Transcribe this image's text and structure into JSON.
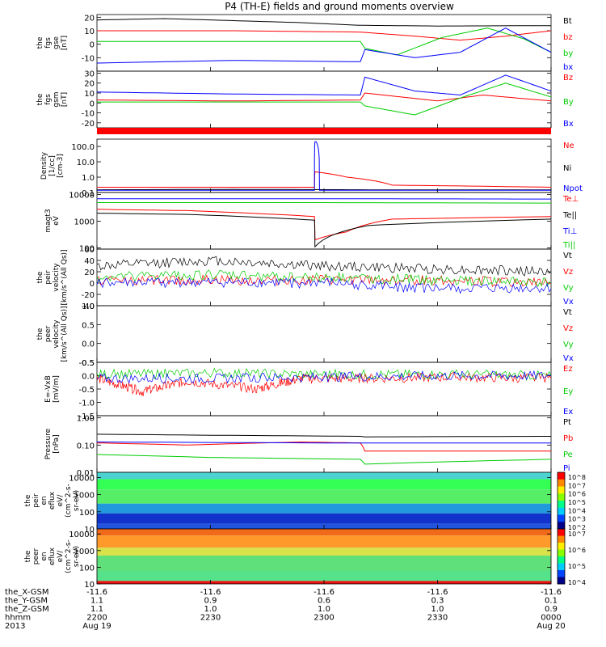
{
  "title": "P4 (TH-E) fields and ground moments overview",
  "colors": {
    "black": "#000000",
    "red": "#ff0000",
    "green": "#00cc00",
    "blue": "#0000ff",
    "bar_red": "#ff0000"
  },
  "time_axis": {
    "major_positions_hhmm": [
      "2200",
      "2230",
      "2300",
      "2330",
      "0000"
    ],
    "date_start": "Aug 19",
    "date_end": "Aug 20",
    "year": "2013"
  },
  "footer": {
    "rows": [
      {
        "label": "the_X-GSM",
        "values": [
          "-11.6",
          "-11.6",
          "-11.6",
          "-11.6",
          "-11.6"
        ]
      },
      {
        "label": "the_Y-GSM",
        "values": [
          "1.1",
          "0.9",
          "0.6",
          "0.3",
          "0.1"
        ]
      },
      {
        "label": "the_Z-GSM",
        "values": [
          "1.1",
          "1.0",
          "1.0",
          "1.0",
          "0.9"
        ]
      },
      {
        "label": "hhmm",
        "values": [
          "2200",
          "2230",
          "2300",
          "2330",
          "0000"
        ]
      },
      {
        "label": "2013",
        "values": [
          "Aug 19",
          "",
          "",
          "",
          "Aug 20"
        ]
      }
    ]
  },
  "chart_data": [
    {
      "type": "line",
      "ylabel": "the fgs gse [nT]",
      "ylabel_lines": [
        "the",
        "fgs",
        "gse",
        "[nT]"
      ],
      "yticks": [
        "20",
        "10",
        "0",
        "-10"
      ],
      "ylim": [
        -20,
        22
      ],
      "series": [
        {
          "name": "Bt",
          "color": "#000000",
          "x": [
            0,
            15,
            30,
            45,
            58,
            59,
            75,
            100
          ],
          "y": [
            18,
            19,
            17.5,
            16,
            14,
            14,
            13.5,
            13.8
          ]
        },
        {
          "name": "bz",
          "color": "#ff0000",
          "x": [
            0,
            30,
            58,
            70,
            80,
            90,
            100
          ],
          "y": [
            10,
            10,
            9,
            6,
            3,
            6,
            10
          ]
        },
        {
          "name": "by",
          "color": "#00cc00",
          "x": [
            0,
            30,
            58,
            59,
            66,
            76,
            86,
            94,
            100
          ],
          "y": [
            2,
            2,
            2,
            -3,
            -8,
            5,
            12,
            4,
            -6
          ]
        },
        {
          "name": "bx",
          "color": "#0000ff",
          "x": [
            0,
            30,
            58,
            59,
            70,
            80,
            90,
            100
          ],
          "y": [
            -14,
            -12,
            -13,
            -4,
            -10,
            -6,
            12,
            -6
          ]
        }
      ]
    },
    {
      "type": "line",
      "ylabel": "the fgs gsm [nT]",
      "ylabel_lines": [
        "the",
        "fgs",
        "gsm",
        "[nT]"
      ],
      "yticks": [
        "30",
        "20",
        "10",
        "0",
        "-10",
        "-20"
      ],
      "ylim": [
        -25,
        32
      ],
      "series": [
        {
          "name": "Bz",
          "color": "#ff0000",
          "x": [
            0,
            30,
            58,
            59,
            75,
            85,
            100
          ],
          "y": [
            3,
            2,
            3,
            10,
            2,
            8,
            2
          ]
        },
        {
          "name": "By",
          "color": "#00cc00",
          "x": [
            0,
            30,
            58,
            59,
            70,
            80,
            90,
            100
          ],
          "y": [
            1,
            1,
            1,
            -3,
            -12,
            5,
            20,
            6
          ]
        },
        {
          "name": "Bx",
          "color": "#0000ff",
          "x": [
            0,
            30,
            58,
            59,
            70,
            80,
            90,
            100
          ],
          "y": [
            11,
            9,
            8,
            26,
            12,
            8,
            28,
            12
          ]
        }
      ]
    },
    {
      "type": "bar",
      "ylabel": "",
      "categories": [
        "2200",
        "0000"
      ],
      "values": [
        1,
        1
      ],
      "note": "full-width red status bar"
    },
    {
      "type": "line",
      "yscale": "log",
      "ylabel": "Density [1/cc] [cm-3]",
      "ylabel_lines": [
        "Density",
        "[1/cc]",
        "[cm-3]"
      ],
      "yticks": [
        "100.0",
        "10.0",
        "1.0",
        "0.1"
      ],
      "ylim": [
        0.1,
        300
      ],
      "series": [
        {
          "name": "Ne",
          "color": "#ff0000",
          "x": [
            0,
            30,
            47.9,
            48,
            55,
            65,
            100
          ],
          "y": [
            0.22,
            0.22,
            0.22,
            2.2,
            1.0,
            0.3,
            0.22
          ]
        },
        {
          "name": "Ni",
          "color": "#000000",
          "x": [
            0,
            30,
            60,
            100
          ],
          "y": [
            0.15,
            0.16,
            0.15,
            0.15
          ]
        },
        {
          "name": "Npot",
          "color": "#0000ff",
          "x": [
            0,
            47.9,
            48,
            48.3,
            49,
            100
          ],
          "y": [
            0.14,
            0.14,
            200,
            200,
            0.14,
            0.14
          ]
        }
      ]
    },
    {
      "type": "line",
      "yscale": "log",
      "ylabel": "magt3 eV",
      "ylabel_lines": [
        "magt3",
        "eV"
      ],
      "yticks": [
        "10000",
        "1000",
        "100"
      ],
      "ylim": [
        90,
        12000
      ],
      "series": [
        {
          "name": "Te⊥",
          "color": "#ff0000",
          "x": [
            0,
            20,
            47.9,
            48,
            55,
            65,
            100
          ],
          "y": [
            2800,
            2500,
            1500,
            200,
            400,
            1200,
            1500
          ]
        },
        {
          "name": "Te||",
          "color": "#000000",
          "x": [
            0,
            20,
            47.9,
            48,
            60,
            100
          ],
          "y": [
            2000,
            1800,
            1100,
            110,
            700,
            1200
          ]
        },
        {
          "name": "Ti⊥",
          "color": "#0000ff",
          "x": [
            0,
            50,
            100
          ],
          "y": [
            7000,
            7000,
            6800
          ]
        },
        {
          "name": "Ti||",
          "color": "#00cc00",
          "x": [
            0,
            50,
            100
          ],
          "y": [
            5000,
            5000,
            4800
          ]
        }
      ]
    },
    {
      "type": "line",
      "ylabel": "the peir velocity [km/s^(All Qs)]",
      "ylabel_lines": [
        "the",
        "peir",
        "velocity",
        "[km/s^(All Qs)]"
      ],
      "yticks": [
        "60",
        "40",
        "20",
        "0",
        "-20",
        "-40"
      ],
      "ylim": [
        -40,
        60
      ],
      "series": [
        {
          "name": "Vt",
          "color": "#000000",
          "x": [
            0,
            25,
            50,
            75,
            100
          ],
          "y": [
            30,
            40,
            30,
            25,
            20
          ]
        },
        {
          "name": "Vz",
          "color": "#ff0000",
          "x": [
            0,
            25,
            50,
            75,
            100
          ],
          "y": [
            5,
            5,
            5,
            5,
            0
          ]
        },
        {
          "name": "Vy",
          "color": "#00cc00",
          "x": [
            0,
            25,
            50,
            75,
            100
          ],
          "y": [
            10,
            15,
            10,
            5,
            0
          ]
        },
        {
          "name": "Vx",
          "color": "#0000ff",
          "x": [
            0,
            25,
            50,
            75,
            100
          ],
          "y": [
            0,
            0,
            0,
            -10,
            -10
          ]
        }
      ]
    },
    {
      "type": "line",
      "ylabel": "the peer velocity [km/s^(All Qs)]",
      "ylabel_lines": [
        "the",
        "peer",
        "velocity",
        "[km/s^(All Qs)]"
      ],
      "yticks": [
        "1.0",
        "0.5",
        "0.0",
        "-0.5"
      ],
      "ylim": [
        -0.5,
        1.0
      ],
      "series": [
        {
          "name": "Vt",
          "color": "#000000",
          "x": [],
          "y": []
        },
        {
          "name": "Vz",
          "color": "#ff0000",
          "x": [],
          "y": []
        },
        {
          "name": "Vy",
          "color": "#00cc00",
          "x": [],
          "y": []
        },
        {
          "name": "Vx",
          "color": "#0000ff",
          "x": [],
          "y": []
        }
      ]
    },
    {
      "type": "line",
      "ylabel": "E=-VxB [mV/m]",
      "ylabel_lines": [
        "E=-VxB",
        "[mV/m]"
      ],
      "yticks": [
        "0.5",
        "0.0",
        "-0.5",
        "-1.0",
        "-1.5"
      ],
      "ylim": [
        -1.5,
        0.5
      ],
      "series": [
        {
          "name": "Ez",
          "color": "#ff0000",
          "x": [
            0,
            10,
            20,
            35,
            45,
            60,
            80,
            100
          ],
          "y": [
            -0.1,
            -0.6,
            -0.2,
            -0.5,
            -0.1,
            -0.1,
            -0.05,
            -0.1
          ]
        },
        {
          "name": "Ey",
          "color": "#00cc00",
          "x": [
            0,
            25,
            50,
            75,
            100
          ],
          "y": [
            0.05,
            0.1,
            0.05,
            0.05,
            0.0
          ]
        },
        {
          "name": "Ex",
          "color": "#0000ff",
          "x": [
            0,
            25,
            50,
            75,
            100
          ],
          "y": [
            -0.1,
            -0.1,
            -0.05,
            0.0,
            0.0
          ]
        }
      ]
    },
    {
      "type": "line",
      "yscale": "log",
      "ylabel": "Pressure [nPa]",
      "ylabel_lines": [
        "Pressure",
        "[nPa]"
      ],
      "yticks": [
        "1.00",
        "0.10",
        "0.01"
      ],
      "ylim": [
        0.01,
        1.2
      ],
      "series": [
        {
          "name": "Pt",
          "color": "#000000",
          "x": [
            0,
            25,
            58,
            59,
            100
          ],
          "y": [
            0.25,
            0.23,
            0.21,
            0.2,
            0.21
          ]
        },
        {
          "name": "Pb",
          "color": "#ff0000",
          "x": [
            0,
            20,
            45,
            58,
            59,
            100
          ],
          "y": [
            0.12,
            0.1,
            0.13,
            0.12,
            0.06,
            0.06
          ]
        },
        {
          "name": "Pe",
          "color": "#00cc00",
          "x": [
            0,
            25,
            58,
            59,
            100
          ],
          "y": [
            0.045,
            0.035,
            0.03,
            0.02,
            0.03
          ]
        },
        {
          "name": "Pi",
          "color": "#0000ff",
          "x": [
            0,
            50,
            100
          ],
          "y": [
            0.13,
            0.12,
            0.12
          ]
        }
      ]
    },
    {
      "type": "heatmap",
      "ylabel": "the peir en eflux eV/(cm^2-s-sr-eV)",
      "ylabel_lines": [
        "the",
        "peir",
        "en",
        "eflux",
        "eV/",
        "(cm^2-s-",
        "sr-eV)"
      ],
      "yscale": "log",
      "yticks": [
        "10000",
        "1000",
        "100",
        "10"
      ],
      "ylim": [
        10,
        20000
      ],
      "colorbar_ticks": [
        "10^8",
        "10^7",
        "10^6",
        "10^5",
        "10^4",
        "10^3",
        "10^2"
      ],
      "bands": [
        {
          "from": 8000,
          "to": 20000,
          "color": "#4dd2d2"
        },
        {
          "from": 2000,
          "to": 8000,
          "color": "#33ff55"
        },
        {
          "from": 300,
          "to": 2000,
          "color": "#55ee66"
        },
        {
          "from": 80,
          "to": 300,
          "color": "#2299dd"
        },
        {
          "from": 20,
          "to": 80,
          "color": "#1133cc"
        },
        {
          "from": 10,
          "to": 20,
          "color": "#2255dd"
        }
      ]
    },
    {
      "type": "heatmap",
      "ylabel": "the peer en eflux eV/(cm^2-s-sr-eV)",
      "ylabel_lines": [
        "the",
        "peer",
        "en",
        "eflux",
        "eV/",
        "(cm^2-s-",
        "sr-eV)"
      ],
      "yscale": "log",
      "yticks": [
        "10000",
        "1000",
        "100",
        "10"
      ],
      "ylim": [
        10,
        20000
      ],
      "colorbar_ticks": [
        "10^7",
        "10^6",
        "10^5",
        "10^4"
      ],
      "bands": [
        {
          "from": 8000,
          "to": 20000,
          "color": "#f06a1a"
        },
        {
          "from": 1500,
          "to": 8000,
          "color": "#ff9a2a"
        },
        {
          "from": 500,
          "to": 1500,
          "color": "#d8e24a"
        },
        {
          "from": 60,
          "to": 500,
          "color": "#5fe07a"
        },
        {
          "from": 15,
          "to": 60,
          "color": "#55e28a"
        },
        {
          "from": 10,
          "to": 15,
          "color": "#ee1111"
        }
      ]
    }
  ]
}
